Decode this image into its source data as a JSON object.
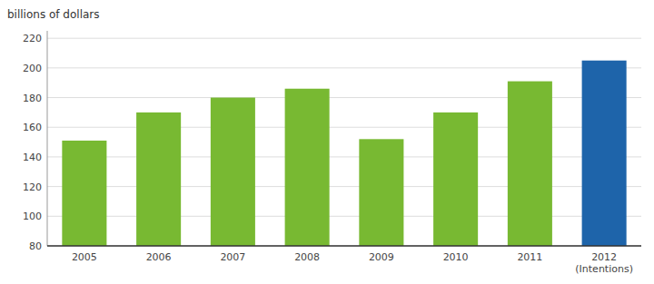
{
  "chart_data": {
    "type": "bar",
    "ylabel": "billions of dollars",
    "categories": [
      "2005",
      "2006",
      "2007",
      "2008",
      "2009",
      "2010",
      "2011",
      "2012\n(Intentions)"
    ],
    "values": [
      151,
      170,
      180,
      186,
      152,
      170,
      191,
      205
    ],
    "colors": [
      "#78b932",
      "#78b932",
      "#78b932",
      "#78b932",
      "#78b932",
      "#78b932",
      "#78b932",
      "#1e64aa"
    ],
    "ylim": [
      80,
      225
    ],
    "yticks": [
      80,
      100,
      120,
      140,
      160,
      180,
      200,
      220
    ],
    "grid": true
  }
}
